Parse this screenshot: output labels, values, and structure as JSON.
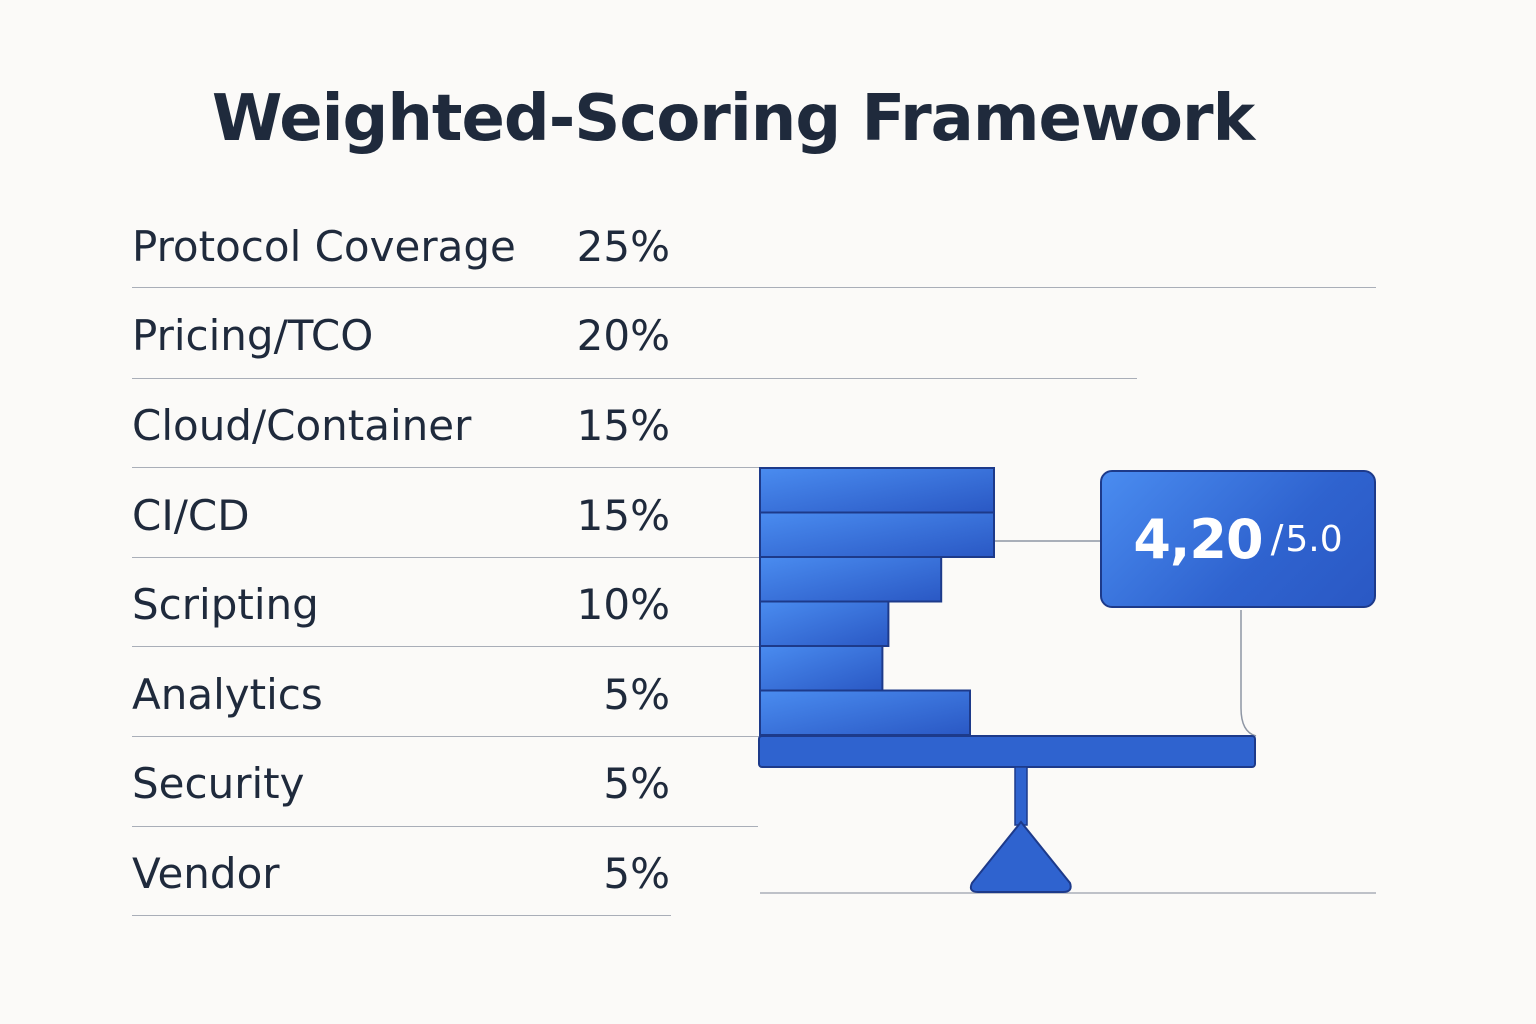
{
  "title": "Weighted-Scoring Framework",
  "criteria": [
    {
      "label": "Protocol Coverage",
      "weight": "25%",
      "weight_value": 25
    },
    {
      "label": "Pricing/TCO",
      "weight": "20%",
      "weight_value": 20
    },
    {
      "label": "Cloud/Container",
      "weight": "15%",
      "weight_value": 15
    },
    {
      "label": "CI/CD",
      "weight": "15%",
      "weight_value": 15
    },
    {
      "label": "Scripting",
      "weight": "10%",
      "weight_value": 10
    },
    {
      "label": "Analytics",
      "weight": "5%",
      "weight_value": 5
    },
    {
      "label": "Security",
      "weight": "5%",
      "weight_value": 5
    },
    {
      "label": "Vendor",
      "weight": "5%",
      "weight_value": 5
    }
  ],
  "score": {
    "value": "4,20",
    "separator": "/",
    "scale": "5.0"
  },
  "colors": {
    "text": "#1f2a3c",
    "accent": "#2f63cf",
    "accent_light": "#4a8cf0",
    "accent_dark": "#1d3a8a",
    "rule": "#a9aeb8",
    "background": "#fbfaf8"
  }
}
